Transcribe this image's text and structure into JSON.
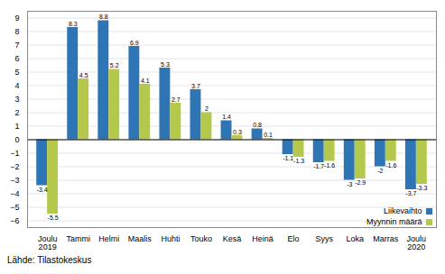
{
  "chart_data": {
    "type": "bar",
    "categories": [
      "Joulu\n2019",
      "Tammi",
      "Helmi",
      "Maalis",
      "Huhti",
      "Touko",
      "Kesä",
      "Heinä",
      "Elo",
      "Syys",
      "Loka",
      "Marras",
      "Joulu\n2020"
    ],
    "series": [
      {
        "name": "Liikevaihto",
        "color": "#2E75B6",
        "values": [
          -3.4,
          8.3,
          8.8,
          6.9,
          5.3,
          3.7,
          1.4,
          0.8,
          -1.1,
          -1.7,
          -3.0,
          -2.0,
          -3.7
        ]
      },
      {
        "name": "Myynnin määrä",
        "color": "#B4C94B",
        "values": [
          -5.5,
          4.5,
          5.2,
          4.1,
          2.7,
          2.0,
          0.3,
          0.1,
          -1.3,
          -1.6,
          -2.9,
          -1.6,
          -3.3
        ]
      }
    ],
    "ylim": [
      -6.5,
      9.5
    ],
    "yticks": [
      -6,
      -5,
      -4,
      -3,
      -2,
      -1,
      0,
      1,
      2,
      3,
      4,
      5,
      6,
      7,
      8,
      9
    ],
    "grid": true,
    "data_labels": true,
    "legend": "lower right",
    "annotations": [
      "Lähde: Tilastokeskus"
    ]
  }
}
